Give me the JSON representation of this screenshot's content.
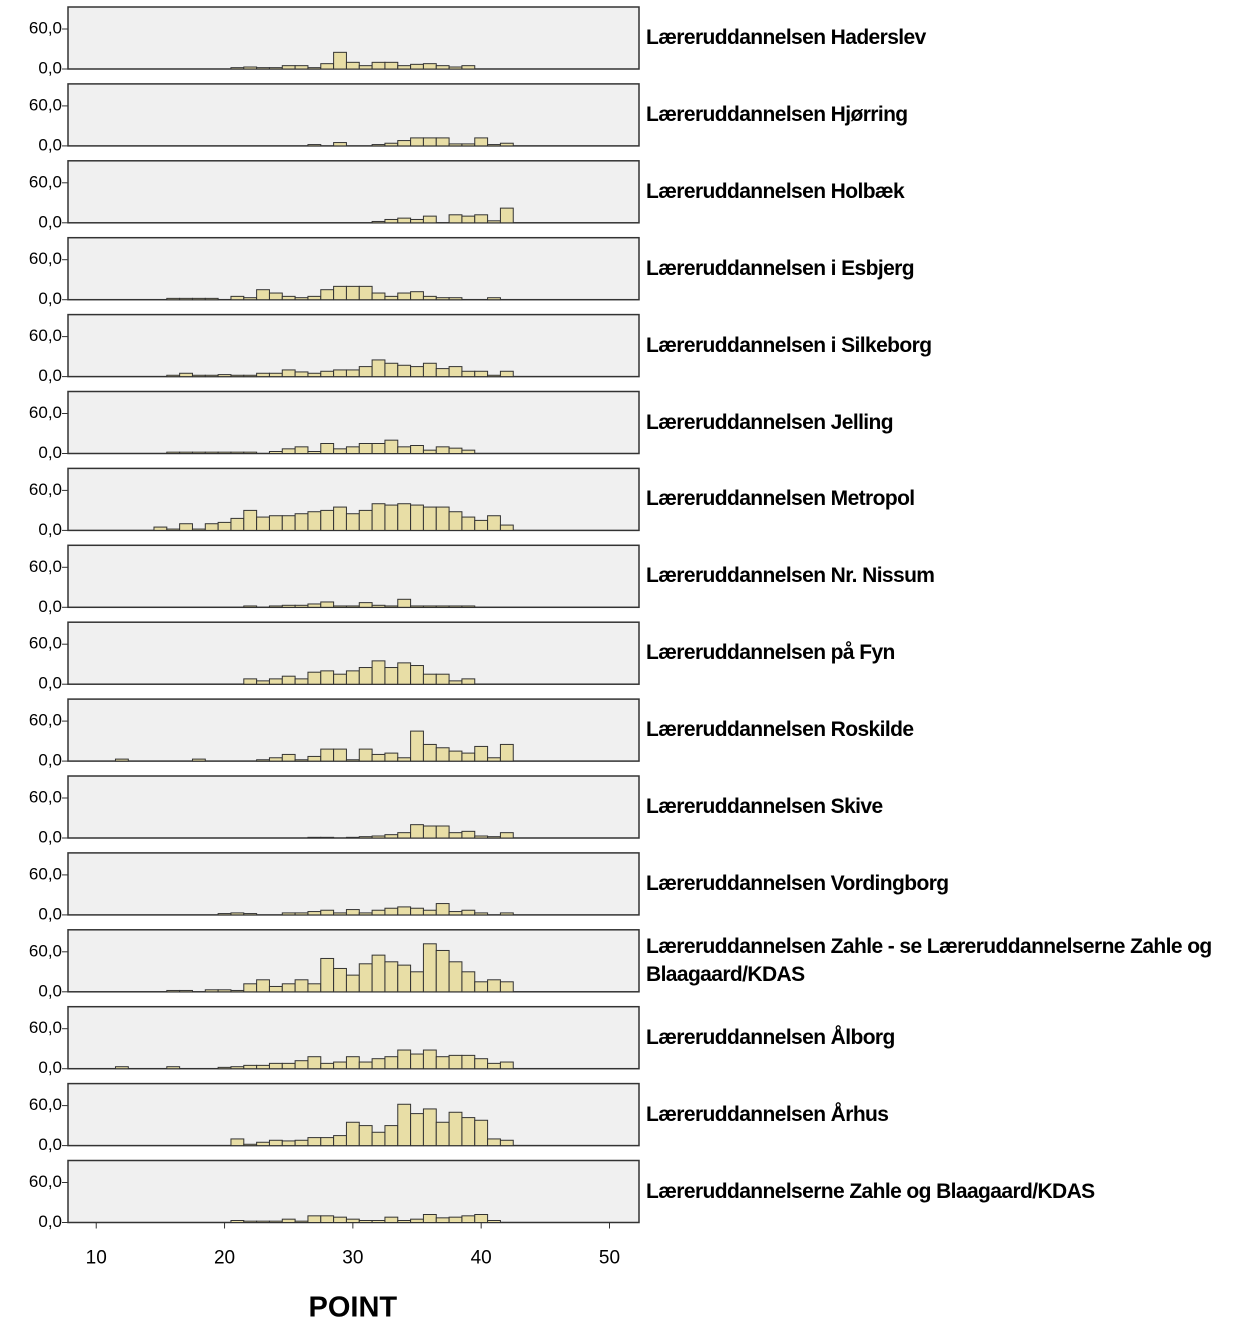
{
  "chart_data": [
    {
      "type": "histogram",
      "title": "Læreruddannelsen Haderslev",
      "color": "#e8dea6",
      "bins": [
        11.5,
        12.5,
        13.5,
        14.5,
        15.5,
        16.5,
        17.5,
        18.5,
        19.5,
        20.5,
        21.5,
        22.5,
        23.5,
        24.5,
        25.5,
        26.5,
        27.5,
        28.5,
        29.5,
        30.5,
        31.5,
        32.5,
        33.5,
        34.5,
        35.5,
        36.5,
        37.5,
        38.5,
        39.5,
        40.5,
        41.5,
        42.5
      ],
      "values": [
        0,
        0,
        0,
        0,
        0,
        0,
        0,
        0,
        0,
        2,
        3,
        2,
        2,
        5,
        5,
        2,
        8,
        25,
        10,
        5,
        10,
        10,
        5,
        7,
        8,
        5,
        3,
        5,
        0,
        0,
        0
      ],
      "xlim": [
        7.8,
        52.3
      ],
      "ylim": [
        0,
        93
      ],
      "yticks": [
        {
          "value": 0,
          "label": "0,0"
        },
        {
          "value": 60,
          "label": "60,0"
        }
      ]
    },
    {
      "type": "histogram",
      "title": "Læreruddannelsen Hjørring",
      "color": "#e8dea6",
      "bins": [
        11.5,
        12.5,
        13.5,
        14.5,
        15.5,
        16.5,
        17.5,
        18.5,
        19.5,
        20.5,
        21.5,
        22.5,
        23.5,
        24.5,
        25.5,
        26.5,
        27.5,
        28.5,
        29.5,
        30.5,
        31.5,
        32.5,
        33.5,
        34.5,
        35.5,
        36.5,
        37.5,
        38.5,
        39.5,
        40.5,
        41.5,
        42.5
      ],
      "values": [
        0,
        0,
        0,
        0,
        0,
        0,
        0,
        0,
        0,
        0,
        0,
        0,
        0,
        0,
        0,
        2,
        0,
        5,
        0,
        0,
        2,
        4,
        8,
        12,
        12,
        12,
        3,
        3,
        12,
        2,
        4
      ],
      "xlim": [
        7.8,
        52.3
      ],
      "ylim": [
        0,
        93
      ],
      "yticks": [
        {
          "value": 0,
          "label": "0,0"
        },
        {
          "value": 60,
          "label": "60,0"
        }
      ]
    },
    {
      "type": "histogram",
      "title": "Læreruddannelsen Holbæk",
      "color": "#e8dea6",
      "bins": [
        11.5,
        12.5,
        13.5,
        14.5,
        15.5,
        16.5,
        17.5,
        18.5,
        19.5,
        20.5,
        21.5,
        22.5,
        23.5,
        24.5,
        25.5,
        26.5,
        27.5,
        28.5,
        29.5,
        30.5,
        31.5,
        32.5,
        33.5,
        34.5,
        35.5,
        36.5,
        37.5,
        38.5,
        39.5,
        40.5,
        41.5,
        42.5
      ],
      "values": [
        0,
        0,
        0,
        0,
        0,
        0,
        0,
        0,
        0,
        0,
        0,
        0,
        0,
        0,
        0,
        0,
        0,
        0,
        0,
        0,
        2,
        5,
        7,
        5,
        10,
        0,
        12,
        10,
        12,
        3,
        22
      ],
      "xlim": [
        7.8,
        52.3
      ],
      "ylim": [
        0,
        93
      ],
      "yticks": [
        {
          "value": 0,
          "label": "0,0"
        },
        {
          "value": 60,
          "label": "60,0"
        }
      ]
    },
    {
      "type": "histogram",
      "title": "Læreruddannelsen i Esbjerg",
      "color": "#e8dea6",
      "bins": [
        11.5,
        12.5,
        13.5,
        14.5,
        15.5,
        16.5,
        17.5,
        18.5,
        19.5,
        20.5,
        21.5,
        22.5,
        23.5,
        24.5,
        25.5,
        26.5,
        27.5,
        28.5,
        29.5,
        30.5,
        31.5,
        32.5,
        33.5,
        34.5,
        35.5,
        36.5,
        37.5,
        38.5,
        39.5,
        40.5,
        41.5,
        42.5
      ],
      "values": [
        0,
        0,
        0,
        0,
        2,
        2,
        2,
        2,
        0,
        5,
        3,
        15,
        10,
        5,
        3,
        5,
        15,
        20,
        20,
        20,
        10,
        5,
        10,
        12,
        5,
        3,
        3,
        0,
        0,
        3,
        0
      ],
      "xlim": [
        7.8,
        52.3
      ],
      "ylim": [
        0,
        93
      ],
      "yticks": [
        {
          "value": 0,
          "label": "0,0"
        },
        {
          "value": 60,
          "label": "60,0"
        }
      ]
    },
    {
      "type": "histogram",
      "title": "Læreruddannelsen i Silkeborg",
      "color": "#e8dea6",
      "bins": [
        11.5,
        12.5,
        13.5,
        14.5,
        15.5,
        16.5,
        17.5,
        18.5,
        19.5,
        20.5,
        21.5,
        22.5,
        23.5,
        24.5,
        25.5,
        26.5,
        27.5,
        28.5,
        29.5,
        30.5,
        31.5,
        32.5,
        33.5,
        34.5,
        35.5,
        36.5,
        37.5,
        38.5,
        39.5,
        40.5,
        41.5,
        42.5
      ],
      "values": [
        0,
        0,
        0,
        0,
        2,
        5,
        2,
        2,
        3,
        2,
        2,
        5,
        5,
        10,
        7,
        5,
        8,
        10,
        10,
        15,
        25,
        20,
        17,
        15,
        20,
        12,
        15,
        8,
        8,
        2,
        8
      ],
      "xlim": [
        7.8,
        52.3
      ],
      "ylim": [
        0,
        93
      ],
      "yticks": [
        {
          "value": 0,
          "label": "0,0"
        },
        {
          "value": 60,
          "label": "60,0"
        }
      ]
    },
    {
      "type": "histogram",
      "title": "Læreruddannelsen Jelling",
      "color": "#e8dea6",
      "bins": [
        11.5,
        12.5,
        13.5,
        14.5,
        15.5,
        16.5,
        17.5,
        18.5,
        19.5,
        20.5,
        21.5,
        22.5,
        23.5,
        24.5,
        25.5,
        26.5,
        27.5,
        28.5,
        29.5,
        30.5,
        31.5,
        32.5,
        33.5,
        34.5,
        35.5,
        36.5,
        37.5,
        38.5,
        39.5,
        40.5,
        41.5,
        42.5
      ],
      "values": [
        0,
        0,
        0,
        0,
        2,
        2,
        2,
        2,
        2,
        2,
        2,
        0,
        3,
        7,
        10,
        3,
        15,
        7,
        10,
        15,
        15,
        20,
        10,
        12,
        5,
        10,
        8,
        5,
        0,
        0,
        0
      ],
      "xlim": [
        7.8,
        52.3
      ],
      "ylim": [
        0,
        93
      ],
      "yticks": [
        {
          "value": 0,
          "label": "0,0"
        },
        {
          "value": 60,
          "label": "60,0"
        }
      ]
    },
    {
      "type": "histogram",
      "title": "Læreruddannelsen Metropol",
      "color": "#e8dea6",
      "bins": [
        11.5,
        12.5,
        13.5,
        14.5,
        15.5,
        16.5,
        17.5,
        18.5,
        19.5,
        20.5,
        21.5,
        22.5,
        23.5,
        24.5,
        25.5,
        26.5,
        27.5,
        28.5,
        29.5,
        30.5,
        31.5,
        32.5,
        33.5,
        34.5,
        35.5,
        36.5,
        37.5,
        38.5,
        39.5,
        40.5,
        41.5,
        42.5
      ],
      "values": [
        0,
        0,
        0,
        5,
        2,
        10,
        2,
        10,
        12,
        18,
        30,
        20,
        22,
        22,
        25,
        28,
        30,
        35,
        25,
        30,
        40,
        38,
        40,
        38,
        35,
        35,
        28,
        20,
        15,
        22,
        8
      ],
      "xlim": [
        7.8,
        52.3
      ],
      "ylim": [
        0,
        93
      ],
      "yticks": [
        {
          "value": 0,
          "label": "0,0"
        },
        {
          "value": 60,
          "label": "60,0"
        }
      ]
    },
    {
      "type": "histogram",
      "title": "Læreruddannelsen Nr. Nissum",
      "color": "#e8dea6",
      "bins": [
        11.5,
        12.5,
        13.5,
        14.5,
        15.5,
        16.5,
        17.5,
        18.5,
        19.5,
        20.5,
        21.5,
        22.5,
        23.5,
        24.5,
        25.5,
        26.5,
        27.5,
        28.5,
        29.5,
        30.5,
        31.5,
        32.5,
        33.5,
        34.5,
        35.5,
        36.5,
        37.5,
        38.5,
        39.5,
        40.5,
        41.5,
        42.5
      ],
      "values": [
        0,
        0,
        0,
        0,
        0,
        0,
        0,
        0,
        0,
        0,
        2,
        0,
        2,
        3,
        3,
        5,
        8,
        2,
        2,
        7,
        3,
        2,
        12,
        2,
        2,
        2,
        2,
        2,
        0,
        0,
        0
      ],
      "xlim": [
        7.8,
        52.3
      ],
      "ylim": [
        0,
        93
      ],
      "yticks": [
        {
          "value": 0,
          "label": "0,0"
        },
        {
          "value": 60,
          "label": "60,0"
        }
      ]
    },
    {
      "type": "histogram",
      "title": "Læreruddannelsen på Fyn",
      "color": "#e8dea6",
      "bins": [
        11.5,
        12.5,
        13.5,
        14.5,
        15.5,
        16.5,
        17.5,
        18.5,
        19.5,
        20.5,
        21.5,
        22.5,
        23.5,
        24.5,
        25.5,
        26.5,
        27.5,
        28.5,
        29.5,
        30.5,
        31.5,
        32.5,
        33.5,
        34.5,
        35.5,
        36.5,
        37.5,
        38.5,
        39.5,
        40.5,
        41.5,
        42.5
      ],
      "values": [
        0,
        0,
        0,
        0,
        0,
        0,
        0,
        0,
        0,
        0,
        8,
        5,
        8,
        12,
        8,
        18,
        20,
        15,
        20,
        25,
        35,
        25,
        32,
        28,
        15,
        15,
        5,
        8,
        0,
        0,
        0
      ],
      "xlim": [
        7.8,
        52.3
      ],
      "ylim": [
        0,
        93
      ],
      "yticks": [
        {
          "value": 0,
          "label": "0,0"
        },
        {
          "value": 60,
          "label": "60,0"
        }
      ]
    },
    {
      "type": "histogram",
      "title": "Læreruddannelsen Roskilde",
      "color": "#e8dea6",
      "bins": [
        11.5,
        12.5,
        13.5,
        14.5,
        15.5,
        16.5,
        17.5,
        18.5,
        19.5,
        20.5,
        21.5,
        22.5,
        23.5,
        24.5,
        25.5,
        26.5,
        27.5,
        28.5,
        29.5,
        30.5,
        31.5,
        32.5,
        33.5,
        34.5,
        35.5,
        36.5,
        37.5,
        38.5,
        39.5,
        40.5,
        41.5,
        42.5
      ],
      "values": [
        3,
        0,
        0,
        0,
        0,
        0,
        3,
        0,
        0,
        0,
        0,
        2,
        5,
        10,
        2,
        7,
        18,
        18,
        2,
        18,
        10,
        12,
        5,
        45,
        25,
        20,
        15,
        12,
        22,
        5,
        25
      ],
      "xlim": [
        7.8,
        52.3
      ],
      "ylim": [
        0,
        93
      ],
      "yticks": [
        {
          "value": 0,
          "label": "0,0"
        },
        {
          "value": 60,
          "label": "60,0"
        }
      ]
    },
    {
      "type": "histogram",
      "title": "Læreruddannelsen Skive",
      "color": "#e8dea6",
      "bins": [
        11.5,
        12.5,
        13.5,
        14.5,
        15.5,
        16.5,
        17.5,
        18.5,
        19.5,
        20.5,
        21.5,
        22.5,
        23.5,
        24.5,
        25.5,
        26.5,
        27.5,
        28.5,
        29.5,
        30.5,
        31.5,
        32.5,
        33.5,
        34.5,
        35.5,
        36.5,
        37.5,
        38.5,
        39.5,
        40.5,
        41.5,
        42.5
      ],
      "values": [
        0,
        0,
        0,
        0,
        0,
        0,
        0,
        0,
        0,
        0,
        0,
        0,
        0,
        0,
        0,
        1,
        1,
        0,
        1,
        2,
        3,
        5,
        8,
        20,
        18,
        18,
        8,
        10,
        3,
        2,
        8
      ],
      "xlim": [
        7.8,
        52.3
      ],
      "ylim": [
        0,
        93
      ],
      "yticks": [
        {
          "value": 0,
          "label": "0,0"
        },
        {
          "value": 60,
          "label": "60,0"
        }
      ]
    },
    {
      "type": "histogram",
      "title": "Læreruddannelsen Vordingborg",
      "color": "#e8dea6",
      "bins": [
        11.5,
        12.5,
        13.5,
        14.5,
        15.5,
        16.5,
        17.5,
        18.5,
        19.5,
        20.5,
        21.5,
        22.5,
        23.5,
        24.5,
        25.5,
        26.5,
        27.5,
        28.5,
        29.5,
        30.5,
        31.5,
        32.5,
        33.5,
        34.5,
        35.5,
        36.5,
        37.5,
        38.5,
        39.5,
        40.5,
        41.5,
        42.5
      ],
      "values": [
        0,
        0,
        0,
        0,
        0,
        0,
        0,
        0,
        2,
        3,
        2,
        0,
        0,
        3,
        3,
        5,
        7,
        3,
        8,
        3,
        7,
        10,
        12,
        10,
        7,
        17,
        5,
        7,
        3,
        0,
        3
      ],
      "xlim": [
        7.8,
        52.3
      ],
      "ylim": [
        0,
        93
      ],
      "yticks": [
        {
          "value": 0,
          "label": "0,0"
        },
        {
          "value": 60,
          "label": "60,0"
        }
      ]
    },
    {
      "type": "histogram",
      "title": "Læreruddannelsen Zahle - se Læreruddannelserne Zahle og Blaagaard/KDAS",
      "color": "#e8dea6",
      "bins": [
        11.5,
        12.5,
        13.5,
        14.5,
        15.5,
        16.5,
        17.5,
        18.5,
        19.5,
        20.5,
        21.5,
        22.5,
        23.5,
        24.5,
        25.5,
        26.5,
        27.5,
        28.5,
        29.5,
        30.5,
        31.5,
        32.5,
        33.5,
        34.5,
        35.5,
        36.5,
        37.5,
        38.5,
        39.5,
        40.5,
        41.5,
        42.5
      ],
      "values": [
        0,
        0,
        0,
        0,
        2,
        2,
        0,
        3,
        3,
        2,
        12,
        18,
        8,
        12,
        18,
        12,
        50,
        35,
        25,
        42,
        55,
        45,
        40,
        30,
        72,
        62,
        45,
        30,
        15,
        18,
        15
      ],
      "xlim": [
        7.8,
        52.3
      ],
      "ylim": [
        0,
        93
      ],
      "yticks": [
        {
          "value": 0,
          "label": "0,0"
        },
        {
          "value": 60,
          "label": "60,0"
        }
      ]
    },
    {
      "type": "histogram",
      "title": "Læreruddannelsen Ålborg",
      "color": "#e8dea6",
      "bins": [
        11.5,
        12.5,
        13.5,
        14.5,
        15.5,
        16.5,
        17.5,
        18.5,
        19.5,
        20.5,
        21.5,
        22.5,
        23.5,
        24.5,
        25.5,
        26.5,
        27.5,
        28.5,
        29.5,
        30.5,
        31.5,
        32.5,
        33.5,
        34.5,
        35.5,
        36.5,
        37.5,
        38.5,
        39.5,
        40.5,
        41.5,
        42.5
      ],
      "values": [
        3,
        0,
        0,
        0,
        3,
        0,
        0,
        0,
        2,
        3,
        5,
        5,
        8,
        8,
        12,
        18,
        8,
        10,
        18,
        10,
        15,
        18,
        28,
        22,
        28,
        18,
        20,
        20,
        15,
        8,
        10
      ],
      "xlim": [
        7.8,
        52.3
      ],
      "ylim": [
        0,
        93
      ],
      "yticks": [
        {
          "value": 0,
          "label": "0,0"
        },
        {
          "value": 60,
          "label": "60,0"
        }
      ]
    },
    {
      "type": "histogram",
      "title": "Læreruddannelsen Århus",
      "color": "#e8dea6",
      "bins": [
        11.5,
        12.5,
        13.5,
        14.5,
        15.5,
        16.5,
        17.5,
        18.5,
        19.5,
        20.5,
        21.5,
        22.5,
        23.5,
        24.5,
        25.5,
        26.5,
        27.5,
        28.5,
        29.5,
        30.5,
        31.5,
        32.5,
        33.5,
        34.5,
        35.5,
        36.5,
        37.5,
        38.5,
        39.5,
        40.5,
        41.5,
        42.5
      ],
      "values": [
        0,
        0,
        0,
        0,
        0,
        0,
        0,
        0,
        0,
        10,
        2,
        5,
        8,
        7,
        8,
        12,
        12,
        15,
        35,
        30,
        20,
        30,
        62,
        48,
        55,
        35,
        50,
        42,
        38,
        10,
        8
      ],
      "xlim": [
        7.8,
        52.3
      ],
      "ylim": [
        0,
        93
      ],
      "yticks": [
        {
          "value": 0,
          "label": "0,0"
        },
        {
          "value": 60,
          "label": "60,0"
        }
      ]
    },
    {
      "type": "histogram",
      "title": "Læreruddannelserne Zahle og Blaagaard/KDAS",
      "color": "#e8dea6",
      "bins": [
        11.5,
        12.5,
        13.5,
        14.5,
        15.5,
        16.5,
        17.5,
        18.5,
        19.5,
        20.5,
        21.5,
        22.5,
        23.5,
        24.5,
        25.5,
        26.5,
        27.5,
        28.5,
        29.5,
        30.5,
        31.5,
        32.5,
        33.5,
        34.5,
        35.5,
        36.5,
        37.5,
        38.5,
        39.5,
        40.5,
        41.5,
        42.5
      ],
      "values": [
        0,
        0,
        0,
        0,
        0,
        0,
        0,
        0,
        0,
        3,
        2,
        2,
        2,
        5,
        2,
        10,
        10,
        8,
        5,
        3,
        3,
        8,
        3,
        5,
        12,
        7,
        8,
        10,
        12,
        3,
        0
      ],
      "xlim": [
        7.8,
        52.3
      ],
      "ylim": [
        0,
        93
      ],
      "yticks": [
        {
          "value": 0,
          "label": "0,0"
        },
        {
          "value": 60,
          "label": "60,0"
        }
      ],
      "xticks": [
        10,
        20,
        30,
        40,
        50
      ],
      "x_label": "POINT"
    }
  ]
}
